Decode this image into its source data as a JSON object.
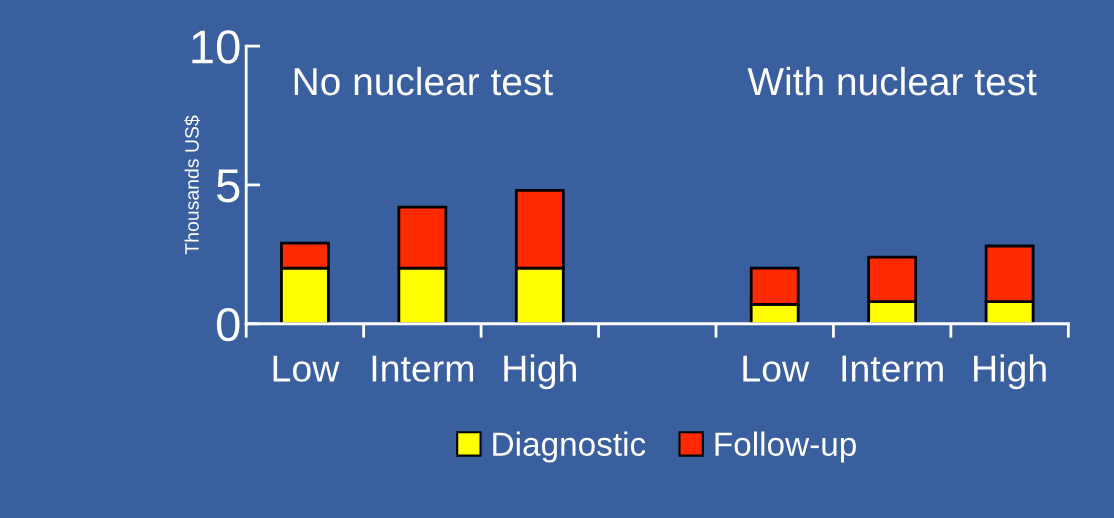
{
  "chart_data": {
    "type": "bar",
    "stacked": true,
    "ylabel": "Thousands US$",
    "categories": [
      "Low",
      "Interm",
      "High",
      null,
      "Low",
      "Interm",
      "High"
    ],
    "series": [
      {
        "name": "Diagnostic",
        "color": "#ffff00",
        "values": [
          2.0,
          2.0,
          2.0,
          null,
          0.7,
          0.8,
          0.8
        ]
      },
      {
        "name": "Follow-up",
        "color": "#ff2a00",
        "values": [
          0.9,
          2.2,
          2.8,
          null,
          1.3,
          1.6,
          2.0
        ]
      }
    ],
    "annotations": [
      "No nuclear test",
      "With nuclear test"
    ],
    "ylim": [
      0,
      10
    ],
    "yticks": [
      0,
      5,
      10
    ],
    "grid": false,
    "legend": "bottom"
  }
}
